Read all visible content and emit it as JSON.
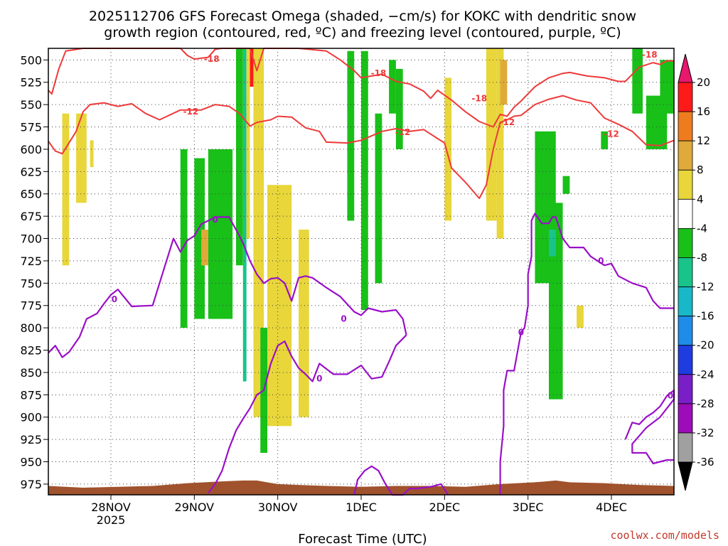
{
  "chart_data": {
    "type": "heatmap",
    "title_line1": "2025112706 GFS Forecast Omega (shaded, −cm/s) for KOKC with dendritic snow",
    "title_line2": "growth region (contoured, red, ºC) and freezing level (contoured, purple, ºC)",
    "xlabel": "Forecast Time (UTC)",
    "credit": "coolwx.com/models",
    "x_ticks": [
      {
        "hour": 18,
        "label": "28NOV",
        "sublabel": "2025"
      },
      {
        "hour": 42,
        "label": "29NOV",
        "sublabel": ""
      },
      {
        "hour": 66,
        "label": "30NOV",
        "sublabel": ""
      },
      {
        "hour": 90,
        "label": "1DEC",
        "sublabel": ""
      },
      {
        "hour": 114,
        "label": "2DEC",
        "sublabel": ""
      },
      {
        "hour": 138,
        "label": "3DEC",
        "sublabel": ""
      },
      {
        "hour": 162,
        "label": "4DEC",
        "sublabel": ""
      }
    ],
    "x_range_hours": [
      0,
      180
    ],
    "y_range_hpa": [
      987,
      487
    ],
    "y_ticks": [
      500,
      525,
      550,
      575,
      600,
      625,
      650,
      675,
      700,
      725,
      750,
      775,
      800,
      825,
      850,
      875,
      900,
      925,
      950,
      975
    ],
    "colorbar": {
      "labels": [
        "20",
        "16",
        "12",
        "8",
        "4",
        "-4",
        "-8",
        "-12",
        "-16",
        "-20",
        "-24",
        "-28",
        "-32",
        "-36"
      ],
      "colors": [
        "#ff1a1a",
        "#ee7c1e",
        "#e0aa3a",
        "#e8d63a",
        "#ffffff",
        "#18c018",
        "#18c48a",
        "#18b8c8",
        "#1e8ce8",
        "#1e3ce0",
        "#7a1ec8",
        "#9c0cb8",
        "#a0a0a0"
      ],
      "top_color": "#e8186e",
      "bottom_color": "#000000"
    },
    "contour_labels": {
      "dgz_minus18": "-18",
      "dgz_minus12": "-12",
      "freezing_level": "0"
    },
    "dgz_minus18": [
      [
        0,
        534
      ],
      [
        1,
        538
      ],
      [
        3,
        510
      ],
      [
        5,
        490
      ],
      [
        10,
        487
      ],
      [
        18,
        487
      ],
      [
        28,
        487
      ],
      [
        38,
        487
      ],
      [
        40,
        495
      ],
      [
        42,
        499
      ],
      [
        46,
        497
      ],
      [
        48,
        488
      ],
      [
        50,
        487
      ],
      [
        58,
        487
      ],
      [
        60,
        512
      ],
      [
        62,
        487
      ],
      [
        72,
        487
      ],
      [
        80,
        490
      ],
      [
        84,
        500
      ],
      [
        88,
        512
      ],
      [
        90,
        520
      ],
      [
        96,
        516
      ],
      [
        100,
        524
      ],
      [
        104,
        527
      ],
      [
        108,
        535
      ],
      [
        110,
        543
      ],
      [
        112,
        534
      ],
      [
        116,
        545
      ],
      [
        120,
        558
      ],
      [
        124,
        569
      ],
      [
        128,
        575
      ],
      [
        130,
        561
      ],
      [
        132,
        563
      ],
      [
        134,
        553
      ],
      [
        136,
        546
      ],
      [
        140,
        530
      ],
      [
        144,
        520
      ],
      [
        148,
        515
      ],
      [
        150,
        514
      ],
      [
        155,
        518
      ],
      [
        160,
        520
      ],
      [
        164,
        524
      ],
      [
        166,
        524
      ],
      [
        170,
        508
      ],
      [
        174,
        503
      ],
      [
        176,
        505
      ],
      [
        178,
        501
      ],
      [
        180,
        501
      ]
    ],
    "dgz_minus12": [
      [
        0,
        591
      ],
      [
        2,
        602
      ],
      [
        4,
        605
      ],
      [
        8,
        580
      ],
      [
        10,
        558
      ],
      [
        12,
        550
      ],
      [
        16,
        548
      ],
      [
        20,
        552
      ],
      [
        24,
        549
      ],
      [
        28,
        560
      ],
      [
        32,
        567
      ],
      [
        38,
        556
      ],
      [
        44,
        556
      ],
      [
        48,
        550
      ],
      [
        52,
        552
      ],
      [
        55,
        560
      ],
      [
        58,
        574
      ],
      [
        60,
        570
      ],
      [
        64,
        567
      ],
      [
        66,
        563
      ],
      [
        70,
        564
      ],
      [
        74,
        576
      ],
      [
        78,
        580
      ],
      [
        80,
        592
      ],
      [
        86,
        593
      ],
      [
        90,
        590
      ],
      [
        96,
        580
      ],
      [
        100,
        577
      ],
      [
        104,
        580
      ],
      [
        108,
        578
      ],
      [
        114,
        593
      ],
      [
        116,
        621
      ],
      [
        120,
        637
      ],
      [
        124,
        655
      ],
      [
        126,
        640
      ],
      [
        128,
        600
      ],
      [
        130,
        570
      ],
      [
        132,
        567
      ],
      [
        134,
        563
      ],
      [
        136,
        562
      ],
      [
        138,
        556
      ],
      [
        140,
        550
      ],
      [
        144,
        544
      ],
      [
        148,
        540
      ],
      [
        152,
        545
      ],
      [
        156,
        548
      ],
      [
        160,
        565
      ],
      [
        164,
        572
      ],
      [
        168,
        580
      ],
      [
        172,
        595
      ],
      [
        176,
        596
      ],
      [
        180,
        590
      ]
    ],
    "freezing_level": [
      [
        0,
        828
      ],
      [
        2,
        820
      ],
      [
        4,
        833
      ],
      [
        6,
        827
      ],
      [
        9,
        810
      ],
      [
        11,
        790
      ],
      [
        14,
        784
      ],
      [
        16,
        773
      ],
      [
        18,
        763
      ],
      [
        20,
        757
      ],
      [
        24,
        776
      ],
      [
        30,
        775
      ],
      [
        32,
        750
      ],
      [
        36,
        700
      ],
      [
        38,
        715
      ],
      [
        40,
        702
      ],
      [
        42,
        697
      ],
      [
        44,
        684
      ],
      [
        48,
        676
      ],
      [
        52,
        676
      ],
      [
        54,
        690
      ],
      [
        56,
        705
      ],
      [
        58,
        725
      ],
      [
        60,
        740
      ],
      [
        62,
        750
      ],
      [
        64,
        745
      ],
      [
        66,
        744
      ],
      [
        68,
        750
      ],
      [
        70,
        770
      ],
      [
        72,
        744
      ],
      [
        74,
        742
      ],
      [
        76,
        744
      ],
      [
        80,
        755
      ],
      [
        84,
        765
      ],
      [
        88,
        782
      ],
      [
        90,
        786
      ],
      [
        92,
        778
      ],
      [
        96,
        782
      ],
      [
        100,
        780
      ],
      [
        102,
        790
      ],
      [
        103,
        808
      ]
    ],
    "freezing_level_b": [
      [
        103,
        808
      ],
      [
        100,
        820
      ],
      [
        98,
        838
      ],
      [
        96,
        855
      ],
      [
        93,
        857
      ],
      [
        90,
        842
      ],
      [
        86,
        852
      ],
      [
        82,
        852
      ],
      [
        78,
        840
      ],
      [
        76,
        860
      ],
      [
        74,
        852
      ],
      [
        72,
        845
      ],
      [
        70,
        832
      ],
      [
        68,
        815
      ],
      [
        66,
        820
      ],
      [
        64,
        840
      ],
      [
        62,
        870
      ],
      [
        60,
        875
      ],
      [
        58,
        890
      ],
      [
        56,
        902
      ],
      [
        54,
        915
      ],
      [
        52,
        935
      ],
      [
        50,
        960
      ],
      [
        48,
        975
      ],
      [
        46,
        985
      ]
    ],
    "freezing_level_c": [
      [
        130,
        987
      ],
      [
        130,
        950
      ],
      [
        131,
        910
      ],
      [
        131,
        870
      ],
      [
        132,
        848
      ],
      [
        134,
        848
      ],
      [
        136,
        805
      ],
      [
        137,
        800
      ],
      [
        138,
        775
      ],
      [
        138,
        740
      ],
      [
        139,
        720
      ],
      [
        139,
        680
      ],
      [
        140,
        672
      ],
      [
        142,
        683
      ],
      [
        144,
        683
      ],
      [
        145,
        676
      ],
      [
        146,
        676
      ],
      [
        148,
        700
      ],
      [
        150,
        710
      ],
      [
        154,
        710
      ],
      [
        156,
        720
      ],
      [
        160,
        730
      ],
      [
        162,
        728
      ],
      [
        164,
        742
      ],
      [
        168,
        750
      ],
      [
        172,
        755
      ],
      [
        174,
        770
      ],
      [
        176,
        778
      ],
      [
        178,
        778
      ],
      [
        180,
        778
      ]
    ],
    "freezing_level_d": [
      [
        166,
        925
      ],
      [
        168,
        906
      ],
      [
        170,
        908
      ],
      [
        172,
        900
      ],
      [
        174,
        895
      ],
      [
        176,
        888
      ],
      [
        178,
        876
      ],
      [
        180,
        870
      ],
      [
        180,
        880
      ],
      [
        178,
        890
      ],
      [
        176,
        900
      ],
      [
        172,
        912
      ],
      [
        168,
        930
      ],
      [
        168,
        940
      ],
      [
        172,
        940
      ],
      [
        174,
        952
      ],
      [
        176,
        950
      ],
      [
        178,
        948
      ],
      [
        180,
        948
      ]
    ],
    "freezing_level_e": [
      [
        88,
        987
      ],
      [
        89,
        970
      ],
      [
        91,
        960
      ],
      [
        93,
        955
      ],
      [
        95,
        960
      ],
      [
        97,
        975
      ],
      [
        99,
        987
      ],
      [
        102,
        987
      ],
      [
        104,
        980
      ],
      [
        106,
        980
      ],
      [
        110,
        978
      ],
      [
        113,
        975
      ],
      [
        115,
        987
      ]
    ],
    "omega_patches": [
      {
        "hours": [
          4,
          6
        ],
        "p": [
          560,
          730
        ],
        "value": 5
      },
      {
        "hours": [
          8,
          11
        ],
        "p": [
          560,
          660
        ],
        "value": 5
      },
      {
        "hours": [
          12,
          13
        ],
        "p": [
          590,
          620
        ],
        "value": 5
      },
      {
        "hours": [
          38,
          40
        ],
        "p": [
          600,
          800
        ],
        "value": -5
      },
      {
        "hours": [
          42,
          45
        ],
        "p": [
          610,
          790
        ],
        "value": -5
      },
      {
        "hours": [
          44,
          46
        ],
        "p": [
          690,
          730
        ],
        "value": 9
      },
      {
        "hours": [
          46,
          53
        ],
        "p": [
          600,
          790
        ],
        "value": -5
      },
      {
        "hours": [
          54,
          56
        ],
        "p": [
          487,
          730
        ],
        "value": -5
      },
      {
        "hours": [
          56,
          57
        ],
        "p": [
          487,
          860
        ],
        "value": -9
      },
      {
        "hours": [
          57,
          58
        ],
        "p": [
          487,
          700
        ],
        "value": 5
      },
      {
        "hours": [
          58,
          59
        ],
        "p": [
          487,
          530
        ],
        "value": 18
      },
      {
        "hours": [
          59,
          62
        ],
        "p": [
          487,
          900
        ],
        "value": 5
      },
      {
        "hours": [
          61,
          63
        ],
        "p": [
          800,
          940
        ],
        "value": -5
      },
      {
        "hours": [
          63,
          70
        ],
        "p": [
          640,
          910
        ],
        "value": 5
      },
      {
        "hours": [
          72,
          75
        ],
        "p": [
          690,
          900
        ],
        "value": 5
      },
      {
        "hours": [
          86,
          88
        ],
        "p": [
          490,
          680
        ],
        "value": -5
      },
      {
        "hours": [
          90,
          92
        ],
        "p": [
          490,
          780
        ],
        "value": -5
      },
      {
        "hours": [
          94,
          96
        ],
        "p": [
          560,
          750
        ],
        "value": -5
      },
      {
        "hours": [
          98,
          100
        ],
        "p": [
          500,
          560
        ],
        "value": -5
      },
      {
        "hours": [
          100,
          102
        ],
        "p": [
          510,
          600
        ],
        "value": -5
      },
      {
        "hours": [
          114,
          116
        ],
        "p": [
          520,
          680
        ],
        "value": 5
      },
      {
        "hours": [
          126,
          129
        ],
        "p": [
          487,
          680
        ],
        "value": 5
      },
      {
        "hours": [
          129,
          131
        ],
        "p": [
          487,
          700
        ],
        "value": 5
      },
      {
        "hours": [
          130,
          132
        ],
        "p": [
          500,
          550
        ],
        "value": 10
      },
      {
        "hours": [
          140,
          146
        ],
        "p": [
          580,
          750
        ],
        "value": -5
      },
      {
        "hours": [
          144,
          148
        ],
        "p": [
          660,
          880
        ],
        "value": -6
      },
      {
        "hours": [
          144,
          146
        ],
        "p": [
          690,
          720
        ],
        "value": -9
      },
      {
        "hours": [
          148,
          150
        ],
        "p": [
          630,
          650
        ],
        "value": -5
      },
      {
        "hours": [
          152,
          154
        ],
        "p": [
          775,
          800
        ],
        "value": 5
      },
      {
        "hours": [
          168,
          171
        ],
        "p": [
          487,
          560
        ],
        "value": -5
      },
      {
        "hours": [
          172,
          178
        ],
        "p": [
          540,
          600
        ],
        "value": -5
      },
      {
        "hours": [
          176,
          180
        ],
        "p": [
          500,
          560
        ],
        "value": -5
      },
      {
        "hours": [
          159,
          161
        ],
        "p": [
          580,
          600
        ],
        "value": -5
      }
    ],
    "terrain_top_hpa": [
      [
        0,
        977
      ],
      [
        10,
        979
      ],
      [
        20,
        978
      ],
      [
        30,
        977
      ],
      [
        40,
        974
      ],
      [
        50,
        972
      ],
      [
        56,
        971
      ],
      [
        60,
        971
      ],
      [
        66,
        975
      ],
      [
        72,
        976
      ],
      [
        80,
        977
      ],
      [
        90,
        978
      ],
      [
        100,
        977
      ],
      [
        110,
        977
      ],
      [
        120,
        978
      ],
      [
        130,
        975
      ],
      [
        140,
        973
      ],
      [
        146,
        971
      ],
      [
        150,
        973
      ],
      [
        160,
        974
      ],
      [
        170,
        976
      ],
      [
        180,
        977
      ]
    ]
  }
}
